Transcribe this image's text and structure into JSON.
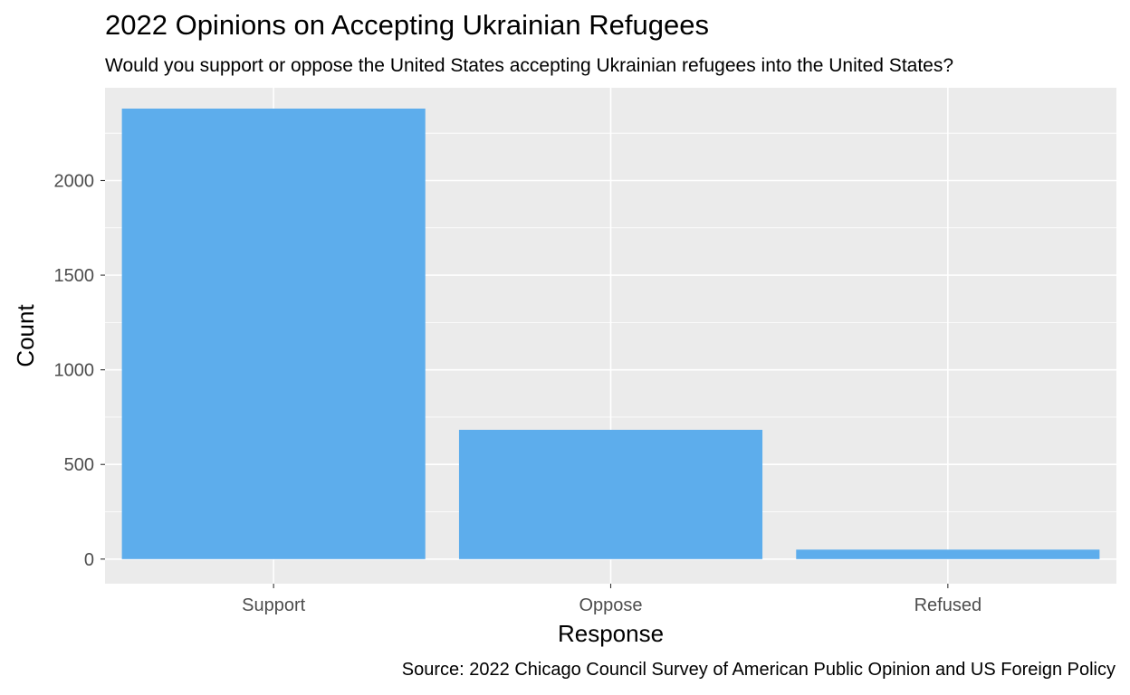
{
  "chart_data": {
    "type": "bar",
    "title": "2022 Opinions on Accepting Ukrainian Refugees",
    "subtitle": "Would you support or oppose the United States accepting Ukrainian refugees into the United States?",
    "caption": "Source: 2022 Chicago Council Survey of American Public Opinion and US Foreign Policy",
    "xlabel": "Response",
    "ylabel": "Count",
    "categories": [
      "Support",
      "Oppose",
      "Refused"
    ],
    "values": [
      2380,
      683,
      50
    ],
    "ylim": [
      -130,
      2490
    ],
    "yticks": [
      0,
      500,
      1000,
      1500,
      2000
    ],
    "ytick_labels": [
      "0",
      "500",
      "1000",
      "1500",
      "2000"
    ],
    "grid": true,
    "legend": "none",
    "colors": {
      "bar": "#5DADEC",
      "panel": "#EBEBEB",
      "gridline": "#FFFFFF",
      "tick_text": "#4D4D4D"
    }
  }
}
